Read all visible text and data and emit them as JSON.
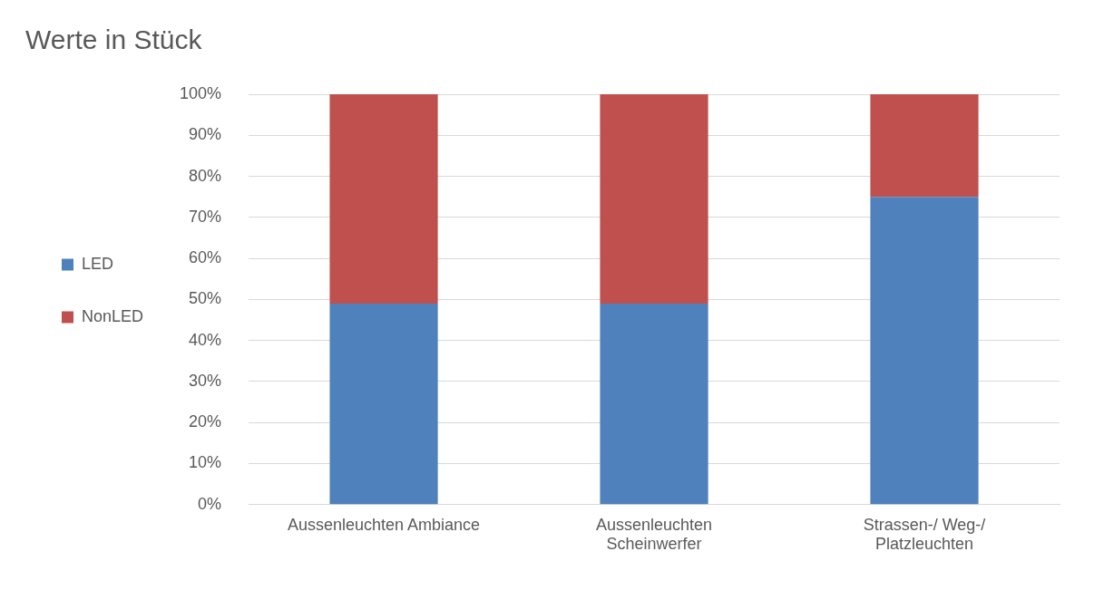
{
  "chart_data": {
    "type": "bar",
    "title": "Werte in Stück",
    "categories": [
      "Aussenleuchten Ambiance",
      "Aussenleuchten Scheinwerfer",
      "Strassen-/ Weg-/ Platzleuchten"
    ],
    "series": [
      {
        "name": "LED",
        "color": "#4f81bd",
        "values": [
          49,
          49,
          75
        ]
      },
      {
        "name": "NonLED",
        "color": "#c0504d",
        "values": [
          51,
          51,
          25
        ]
      }
    ],
    "stacked": true,
    "ylim": [
      0,
      100
    ],
    "yticks": [
      {
        "value": 0,
        "label": "0%"
      },
      {
        "value": 10,
        "label": "10%"
      },
      {
        "value": 20,
        "label": "20%"
      },
      {
        "value": 30,
        "label": "30%"
      },
      {
        "value": 40,
        "label": "40%"
      },
      {
        "value": 50,
        "label": "50%"
      },
      {
        "value": 60,
        "label": "60%"
      },
      {
        "value": 70,
        "label": "70%"
      },
      {
        "value": 80,
        "label": "80%"
      },
      {
        "value": 90,
        "label": "90%"
      },
      {
        "value": 100,
        "label": "100%"
      }
    ],
    "grid": "y",
    "legend": "left"
  }
}
